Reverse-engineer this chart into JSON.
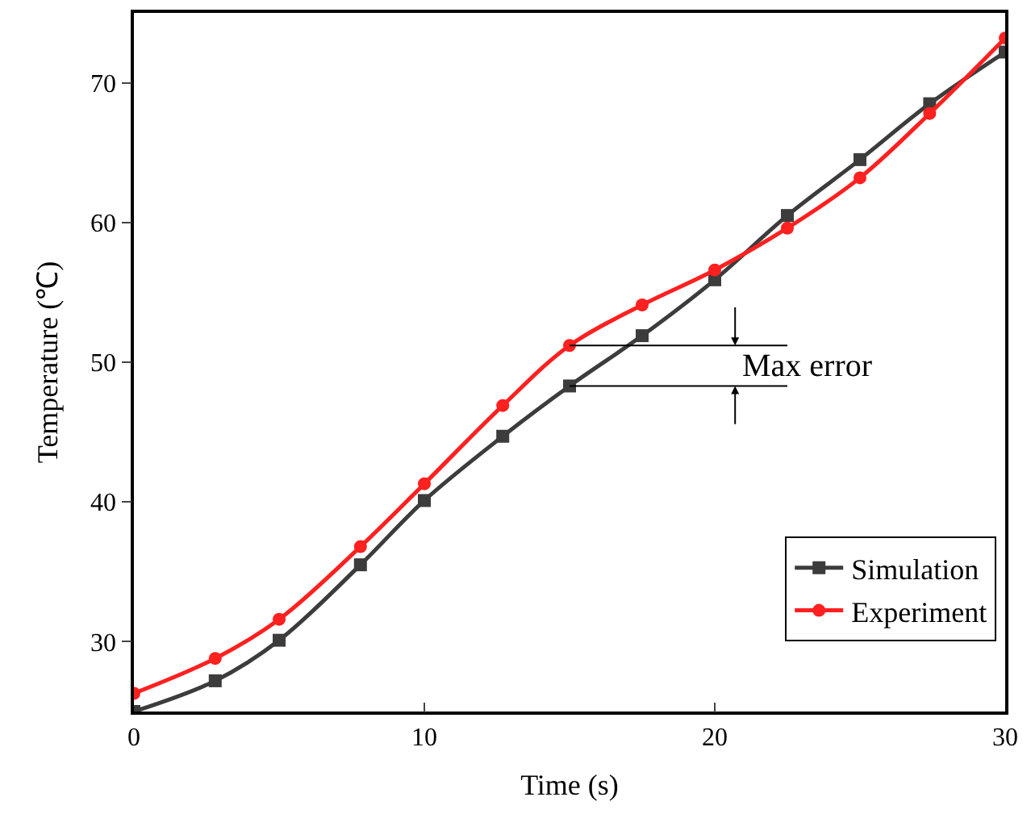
{
  "chart_data": {
    "type": "line",
    "xlabel": "Time (s)",
    "ylabel": "Temperature (℃)",
    "x": [
      0,
      2.8,
      5,
      7.8,
      10,
      12.7,
      15,
      17.5,
      20,
      22.5,
      25,
      27.4,
      30
    ],
    "series": [
      {
        "name": "Simulation",
        "color": "#3c3c3c",
        "marker": "square",
        "values": [
          25.0,
          27.2,
          30.1,
          35.5,
          40.1,
          44.7,
          48.3,
          51.9,
          55.9,
          60.5,
          64.5,
          68.5,
          72.2
        ]
      },
      {
        "name": "Experiment",
        "color": "#ff2020",
        "marker": "circle",
        "values": [
          26.3,
          28.8,
          31.6,
          36.8,
          41.3,
          46.9,
          51.2,
          54.1,
          56.6,
          59.6,
          63.2,
          67.8,
          73.2
        ]
      }
    ],
    "xlim": [
      0,
      30
    ],
    "xticks": [
      0,
      10,
      20,
      30
    ],
    "ylim": [
      25,
      75
    ],
    "yticks": [
      30,
      40,
      50,
      60,
      70
    ],
    "annotations": [
      {
        "text": "Max error",
        "x": 15,
        "y": 51.2
      }
    ],
    "legend": "bottom right",
    "grid": false
  }
}
